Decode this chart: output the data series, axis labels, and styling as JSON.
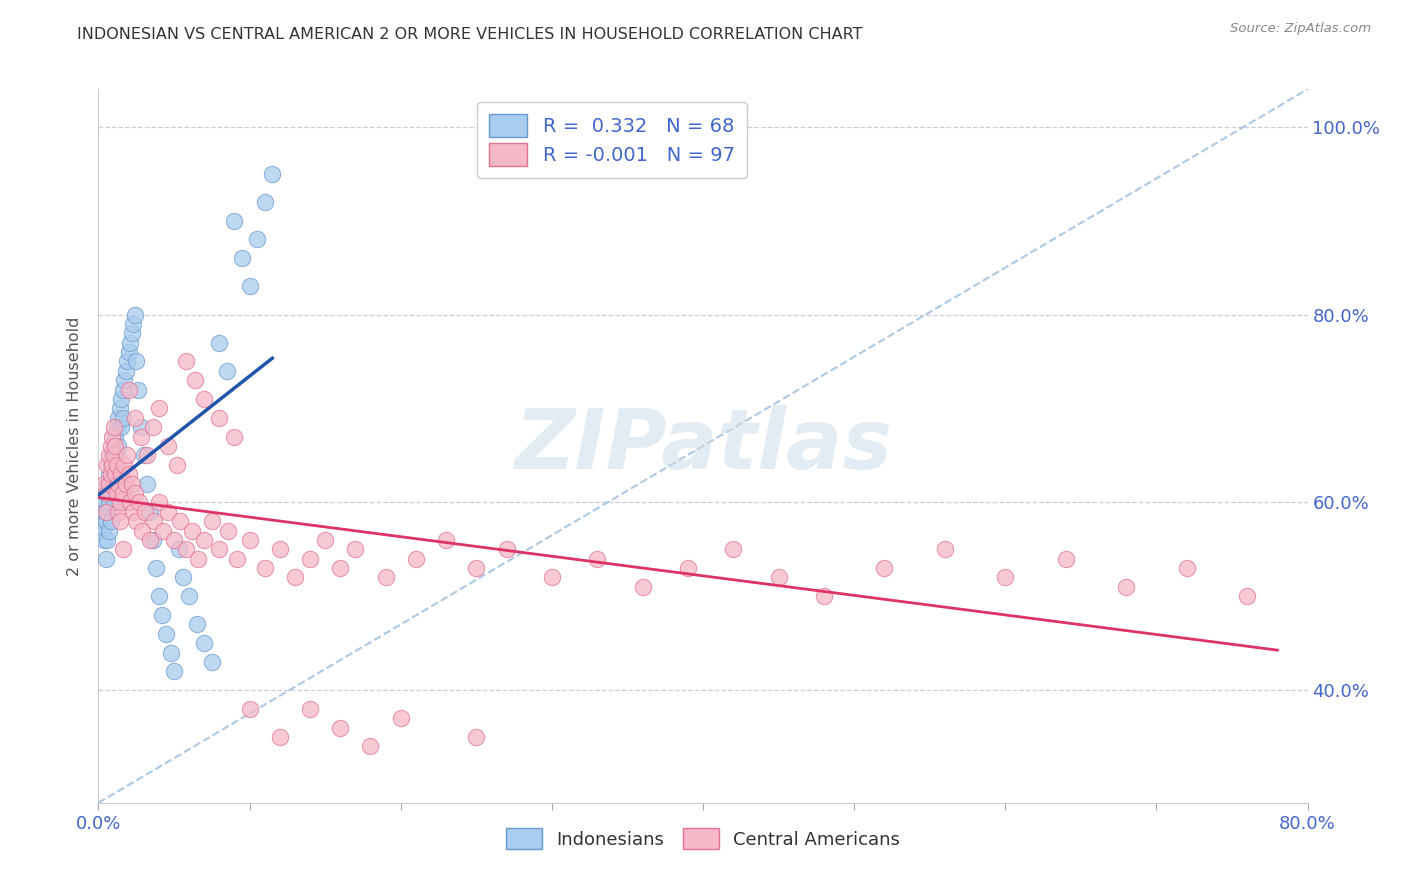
{
  "title": "INDONESIAN VS CENTRAL AMERICAN 2 OR MORE VEHICLES IN HOUSEHOLD CORRELATION CHART",
  "source": "Source: ZipAtlas.com",
  "ylabel": "2 or more Vehicles in Household",
  "legend_label1": "Indonesians",
  "legend_label2": "Central Americans",
  "r1": 0.332,
  "n1": 68,
  "r2": -0.001,
  "n2": 97,
  "xlim": [
    0.0,
    0.8
  ],
  "ylim": [
    0.28,
    1.04
  ],
  "xtick_positions": [
    0.0,
    0.1,
    0.2,
    0.3,
    0.4,
    0.5,
    0.6,
    0.7,
    0.8
  ],
  "xtick_labels": [
    "0.0%",
    "",
    "",
    "",
    "",
    "",
    "",
    "",
    "80.0%"
  ],
  "ytick_positions": [
    0.4,
    0.6,
    0.8,
    1.0
  ],
  "ytick_labels": [
    "40.0%",
    "60.0%",
    "80.0%",
    "100.0%"
  ],
  "color_blue_fill": "#aaccee",
  "color_blue_edge": "#6699cc",
  "color_pink_fill": "#f5b8c8",
  "color_pink_edge": "#e07090",
  "color_blue_line": "#2255aa",
  "color_pink_line": "#dd3366",
  "color_diag": "#99bbdd",
  "color_grid": "#ccccdd",
  "color_tick_label": "#4466cc",
  "title_color": "#333333",
  "source_color": "#888888",
  "watermark": "ZIPatlas",
  "watermark_color": "#ccdde8",
  "bg_color": "#ffffff",
  "ylabel_color": "#555555",
  "legend_box_color": "#cccccc",
  "blue_x": [
    0.002,
    0.003,
    0.003,
    0.004,
    0.004,
    0.005,
    0.005,
    0.005,
    0.006,
    0.006,
    0.006,
    0.007,
    0.007,
    0.007,
    0.008,
    0.008,
    0.008,
    0.009,
    0.009,
    0.01,
    0.01,
    0.01,
    0.011,
    0.011,
    0.012,
    0.012,
    0.013,
    0.013,
    0.014,
    0.015,
    0.015,
    0.016,
    0.016,
    0.017,
    0.018,
    0.019,
    0.02,
    0.021,
    0.022,
    0.023,
    0.024,
    0.025,
    0.026,
    0.028,
    0.03,
    0.032,
    0.034,
    0.036,
    0.038,
    0.04,
    0.042,
    0.045,
    0.048,
    0.05,
    0.053,
    0.056,
    0.06,
    0.065,
    0.07,
    0.075,
    0.08,
    0.085,
    0.09,
    0.095,
    0.1,
    0.105,
    0.11,
    0.115
  ],
  "blue_y": [
    0.58,
    0.57,
    0.6,
    0.59,
    0.56,
    0.61,
    0.58,
    0.54,
    0.62,
    0.59,
    0.56,
    0.63,
    0.6,
    0.57,
    0.64,
    0.61,
    0.58,
    0.65,
    0.62,
    0.66,
    0.63,
    0.6,
    0.67,
    0.64,
    0.68,
    0.65,
    0.69,
    0.66,
    0.7,
    0.71,
    0.68,
    0.72,
    0.69,
    0.73,
    0.74,
    0.75,
    0.76,
    0.77,
    0.78,
    0.79,
    0.8,
    0.75,
    0.72,
    0.68,
    0.65,
    0.62,
    0.59,
    0.56,
    0.53,
    0.5,
    0.48,
    0.46,
    0.44,
    0.42,
    0.55,
    0.52,
    0.5,
    0.47,
    0.45,
    0.43,
    0.77,
    0.74,
    0.9,
    0.86,
    0.83,
    0.88,
    0.92,
    0.95
  ],
  "pink_x": [
    0.004,
    0.005,
    0.006,
    0.006,
    0.007,
    0.007,
    0.008,
    0.008,
    0.009,
    0.009,
    0.01,
    0.01,
    0.011,
    0.011,
    0.012,
    0.012,
    0.013,
    0.013,
    0.014,
    0.015,
    0.016,
    0.017,
    0.018,
    0.019,
    0.02,
    0.021,
    0.022,
    0.023,
    0.024,
    0.025,
    0.027,
    0.029,
    0.031,
    0.034,
    0.037,
    0.04,
    0.043,
    0.046,
    0.05,
    0.054,
    0.058,
    0.062,
    0.066,
    0.07,
    0.075,
    0.08,
    0.086,
    0.092,
    0.1,
    0.11,
    0.12,
    0.13,
    0.14,
    0.15,
    0.16,
    0.17,
    0.19,
    0.21,
    0.23,
    0.25,
    0.27,
    0.3,
    0.33,
    0.36,
    0.39,
    0.42,
    0.45,
    0.48,
    0.52,
    0.56,
    0.6,
    0.64,
    0.68,
    0.72,
    0.76,
    0.014,
    0.016,
    0.02,
    0.024,
    0.028,
    0.032,
    0.036,
    0.04,
    0.046,
    0.052,
    0.058,
    0.064,
    0.07,
    0.08,
    0.09,
    0.1,
    0.12,
    0.14,
    0.16,
    0.18,
    0.2,
    0.25
  ],
  "pink_y": [
    0.62,
    0.59,
    0.64,
    0.61,
    0.65,
    0.62,
    0.66,
    0.63,
    0.67,
    0.64,
    0.68,
    0.65,
    0.66,
    0.63,
    0.64,
    0.61,
    0.62,
    0.59,
    0.6,
    0.63,
    0.61,
    0.64,
    0.62,
    0.65,
    0.63,
    0.6,
    0.62,
    0.59,
    0.61,
    0.58,
    0.6,
    0.57,
    0.59,
    0.56,
    0.58,
    0.6,
    0.57,
    0.59,
    0.56,
    0.58,
    0.55,
    0.57,
    0.54,
    0.56,
    0.58,
    0.55,
    0.57,
    0.54,
    0.56,
    0.53,
    0.55,
    0.52,
    0.54,
    0.56,
    0.53,
    0.55,
    0.52,
    0.54,
    0.56,
    0.53,
    0.55,
    0.52,
    0.54,
    0.51,
    0.53,
    0.55,
    0.52,
    0.5,
    0.53,
    0.55,
    0.52,
    0.54,
    0.51,
    0.53,
    0.5,
    0.58,
    0.55,
    0.72,
    0.69,
    0.67,
    0.65,
    0.68,
    0.7,
    0.66,
    0.64,
    0.75,
    0.73,
    0.71,
    0.69,
    0.67,
    0.38,
    0.35,
    0.38,
    0.36,
    0.34,
    0.37,
    0.35
  ]
}
